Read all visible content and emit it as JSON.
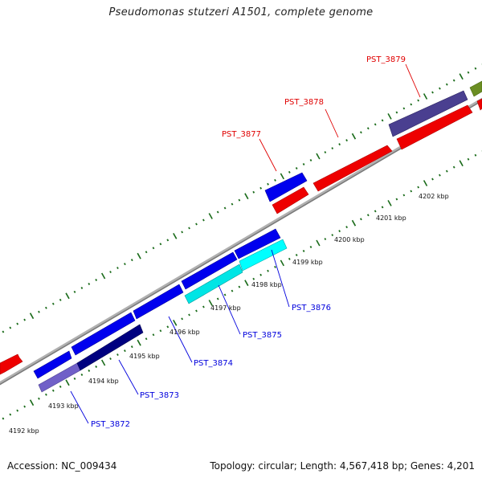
{
  "title": "Pseudomonas stutzeri A1501, complete genome",
  "footer": {
    "accession": "Accession: NC_009434",
    "summary": "Topology: circular; Length: 4,567,418 bp; Genes: 4,201"
  },
  "colors": {
    "backbone": "#888888",
    "tick": "#1a6b1a",
    "forward_label": "#e00000",
    "reverse_label": "#0000dd"
  },
  "kbp_ticks": [
    {
      "label": "4192 kbp"
    },
    {
      "label": "4193 kbp"
    },
    {
      "label": "4194 kbp"
    },
    {
      "label": "4195 kbp"
    },
    {
      "label": "4196 kbp"
    },
    {
      "label": "4197 kbp"
    },
    {
      "label": "4198 kbp"
    },
    {
      "label": "4199 kbp"
    },
    {
      "label": "4200 kbp"
    },
    {
      "label": "4201 kbp"
    },
    {
      "label": "4202 kbp"
    }
  ],
  "gene_labels": [
    {
      "name": "PST_3872",
      "strand": "reverse"
    },
    {
      "name": "PST_3873",
      "strand": "reverse"
    },
    {
      "name": "PST_3874",
      "strand": "reverse"
    },
    {
      "name": "PST_3875",
      "strand": "reverse"
    },
    {
      "name": "PST_3876",
      "strand": "reverse"
    },
    {
      "name": "PST_3877",
      "strand": "forward"
    },
    {
      "name": "PST_3878",
      "strand": "forward"
    },
    {
      "name": "PST_3879",
      "strand": "forward"
    }
  ]
}
